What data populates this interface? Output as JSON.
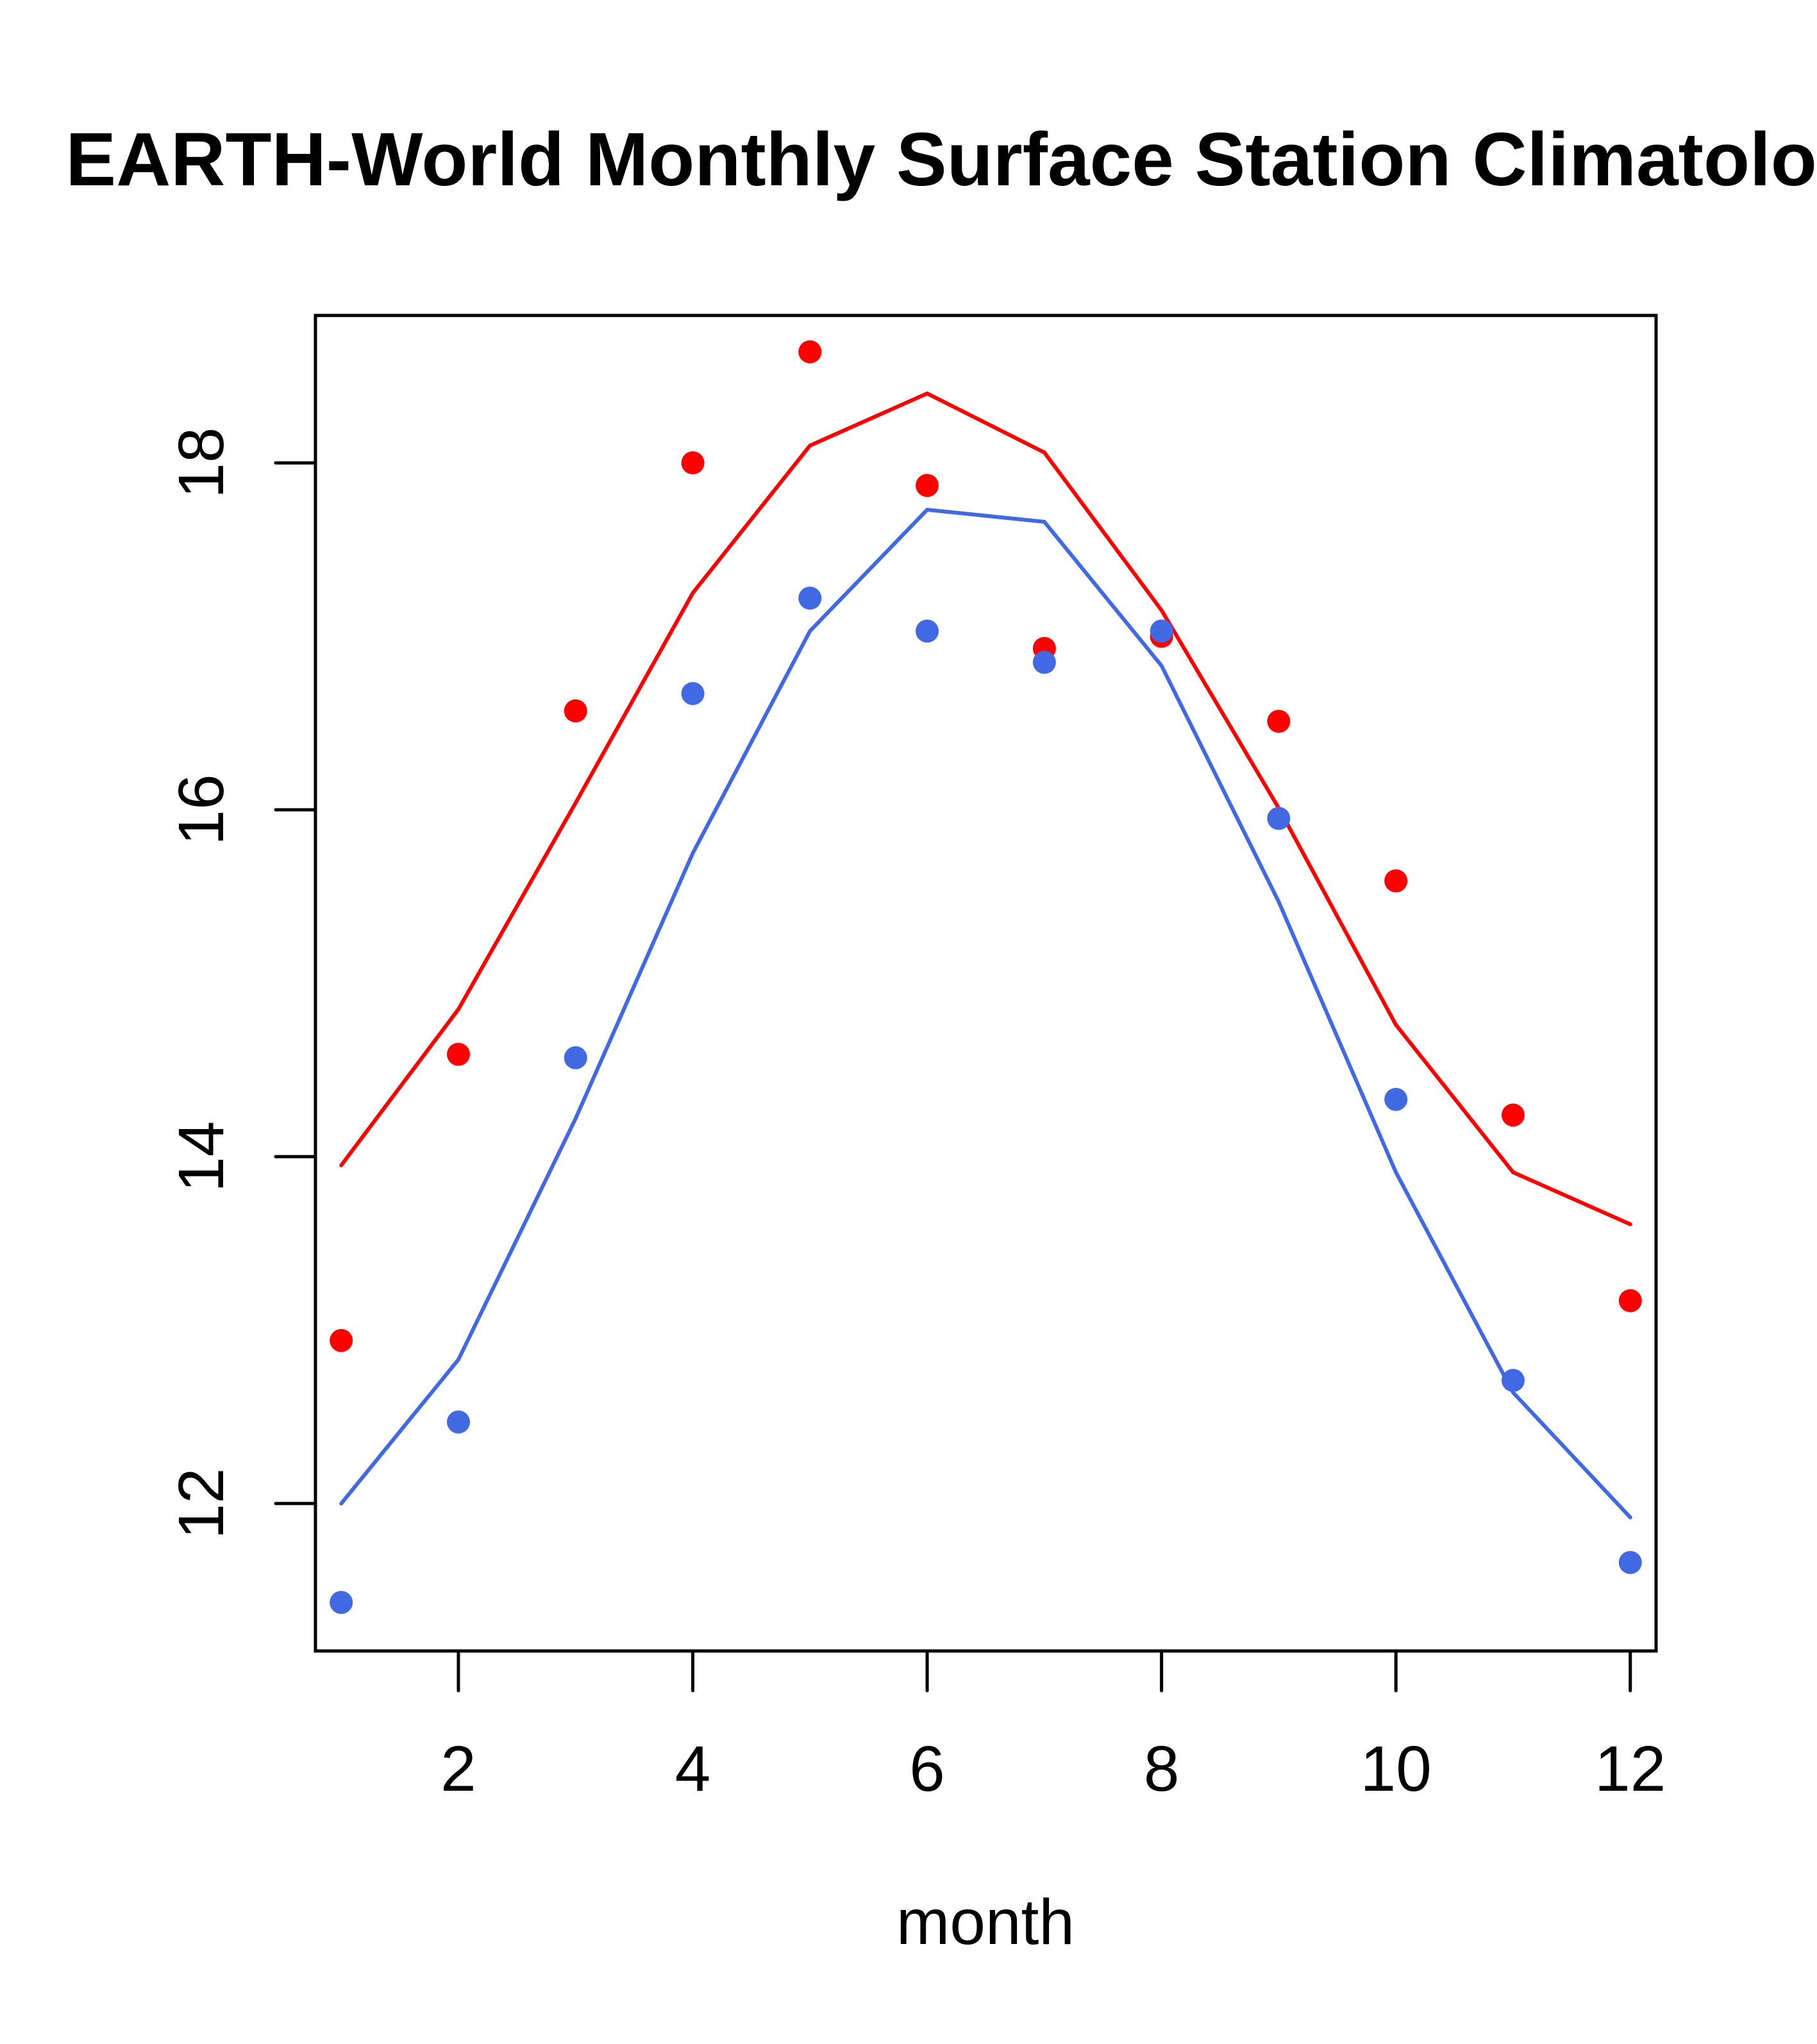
{
  "chart_data": {
    "type": "line",
    "title": "EARTH-World Monthly Surface Station Climatology",
    "xlabel": "month",
    "ylabel": "",
    "xlim": [
      0.78,
      12.22
    ],
    "ylim": [
      11.15,
      18.85
    ],
    "x": [
      1,
      2,
      3,
      4,
      5,
      6,
      7,
      8,
      9,
      10,
      11,
      12
    ],
    "x_ticks": [
      2,
      4,
      6,
      8,
      10,
      12
    ],
    "x_tick_labels": [
      "2",
      "4",
      "6",
      "8",
      "10",
      "12"
    ],
    "y_ticks": [
      12,
      14,
      16,
      18
    ],
    "y_tick_labels": [
      "12",
      "14",
      "16",
      "18"
    ],
    "grid": false,
    "legend": null,
    "series": [
      {
        "name": "red-line",
        "kind": "line",
        "color": "#FF0000",
        "values": [
          13.95,
          14.85,
          16.04,
          17.25,
          18.1,
          18.4,
          18.06,
          17.15,
          16.01,
          14.76,
          13.91,
          13.61
        ]
      },
      {
        "name": "blue-line",
        "kind": "line",
        "color": "#4169E1",
        "values": [
          12.0,
          12.83,
          14.22,
          15.75,
          17.03,
          17.73,
          17.66,
          16.83,
          15.47,
          13.91,
          12.64,
          11.92
        ]
      },
      {
        "name": "red-points",
        "kind": "points",
        "color": "#FF0000",
        "values": [
          12.94,
          14.59,
          16.57,
          18.0,
          18.64,
          17.87,
          16.93,
          17.0,
          16.51,
          15.59,
          14.24,
          13.17
        ]
      },
      {
        "name": "blue-points",
        "kind": "points",
        "color": "#4169E1",
        "values": [
          11.43,
          12.47,
          14.57,
          16.67,
          17.22,
          17.03,
          16.85,
          17.03,
          15.95,
          14.33,
          12.71,
          11.66
        ]
      }
    ]
  }
}
